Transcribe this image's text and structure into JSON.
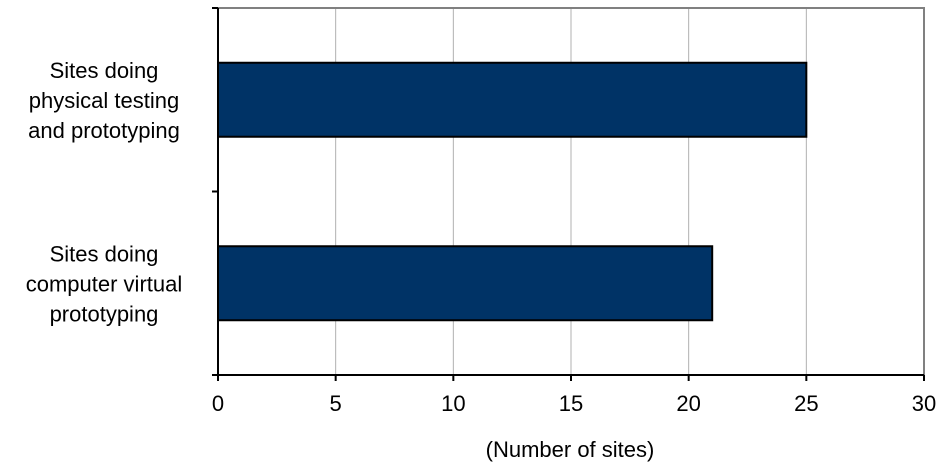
{
  "chart_data": {
    "type": "bar",
    "orientation": "horizontal",
    "categories": [
      [
        "Sites doing",
        "physical testing",
        "and prototyping"
      ],
      [
        "Sites doing",
        "computer virtual",
        "prototyping"
      ]
    ],
    "values": [
      25,
      21
    ],
    "xlabel": "(Number of sites)",
    "xlim": [
      0,
      30
    ],
    "xticks": [
      "0",
      "5",
      "10",
      "15",
      "20",
      "25",
      "30"
    ],
    "grid": "vertical",
    "bar_color": "#003366",
    "legend": "none"
  }
}
